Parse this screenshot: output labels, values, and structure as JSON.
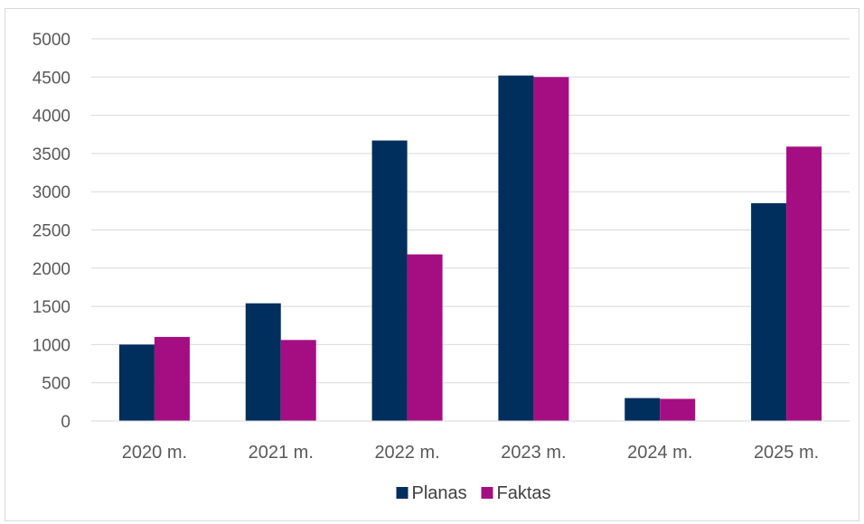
{
  "chart_data": {
    "type": "bar",
    "categories": [
      "2020 m.",
      "2021 m.",
      "2022 m.",
      "2023 m.",
      "2024 m.",
      "2025 m."
    ],
    "series": [
      {
        "name": "Planas",
        "values": [
          1000,
          1540,
          3670,
          4520,
          300,
          2850
        ],
        "color": "#002E5D"
      },
      {
        "name": "Faktas",
        "values": [
          1100,
          1060,
          2180,
          4500,
          290,
          3590
        ],
        "color": "#A50E82"
      }
    ],
    "title": "",
    "xlabel": "",
    "ylabel": "",
    "ylim": [
      0,
      5000
    ],
    "yticks": [
      0,
      500,
      1000,
      1500,
      2000,
      2500,
      3000,
      3500,
      4000,
      4500,
      5000
    ],
    "grid": true,
    "legend": "bottom"
  }
}
